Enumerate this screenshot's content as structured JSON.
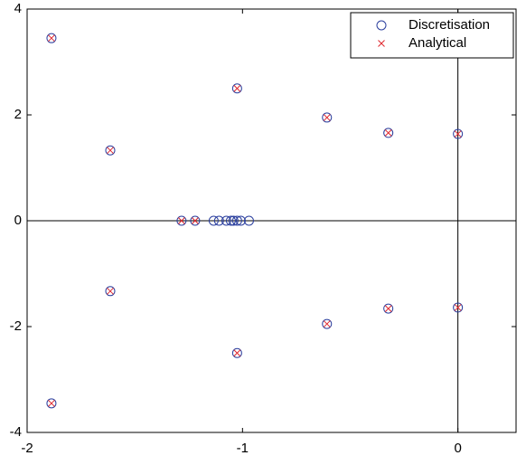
{
  "chart_data": {
    "type": "scatter",
    "series": [
      {
        "name": "Discretisation",
        "color": "#2b3f9e",
        "marker": "circle",
        "x": [
          -1.887,
          -1.614,
          -1.025,
          -0.608,
          -0.323,
          0,
          -1.887,
          -1.614,
          -1.025,
          -0.608,
          -0.323,
          0,
          -1.283,
          -1.22,
          -1.134,
          -1.109,
          -1.075,
          -1.054,
          -1.042,
          -1.025,
          -1.008,
          -0.97
        ],
        "y": [
          3.45,
          1.33,
          2.5,
          1.95,
          1.66,
          1.64,
          -3.45,
          -1.33,
          -2.5,
          -1.95,
          -1.66,
          -1.64,
          0,
          0,
          0,
          0,
          0,
          0,
          0,
          0,
          0,
          0
        ]
      },
      {
        "name": "Analytical",
        "color": "#e0282e",
        "marker": "cross",
        "x": [
          -1.887,
          -1.614,
          -1.025,
          -0.608,
          -0.323,
          0,
          -1.887,
          -1.614,
          -1.025,
          -0.608,
          -0.323,
          0,
          -1.283,
          -1.22
        ],
        "y": [
          3.45,
          1.33,
          2.5,
          1.95,
          1.66,
          1.64,
          -3.45,
          -1.33,
          -2.5,
          -1.95,
          -1.66,
          -1.64,
          0,
          0
        ]
      }
    ],
    "xlim": [
      -2,
      0.27
    ],
    "ylim": [
      -4,
      4
    ],
    "xticks": [
      -2,
      -1,
      0
    ],
    "yticks": [
      -4,
      -2,
      0,
      2,
      4
    ],
    "zero_lines": true,
    "legend": "top-right"
  }
}
